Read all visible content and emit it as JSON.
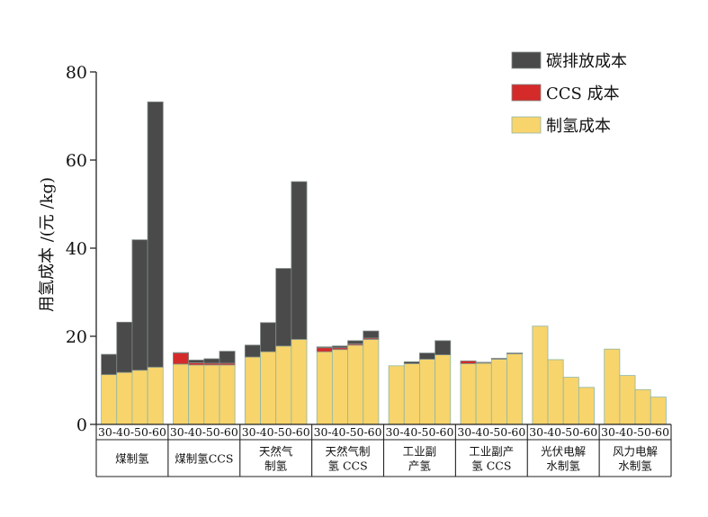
{
  "chart_data": {
    "type": "bar",
    "stacked": true,
    "ylabel": "用氢成本 /(元 /kg)",
    "ylim": [
      0,
      80
    ],
    "yticks": [
      0,
      20,
      40,
      60,
      80
    ],
    "legend_position": "top-right",
    "series": [
      {
        "key": "carbon",
        "name": "碳排放成本",
        "color": "#4a4a4a"
      },
      {
        "key": "ccs",
        "name": "CCS 成本",
        "color": "#d42a2a"
      },
      {
        "key": "h2",
        "name": "制氢成本",
        "color": "#f7d46c"
      }
    ],
    "sub_categories": [
      "30",
      "40",
      "50",
      "60"
    ],
    "groups": [
      {
        "label_lines": [
          "煤制氢"
        ],
        "h2": [
          11.3,
          11.8,
          12.3,
          13.0
        ],
        "ccs": [
          0,
          0,
          0,
          0
        ],
        "carbon": [
          4.6,
          11.4,
          29.6,
          60.2
        ]
      },
      {
        "label_lines": [
          "煤制氢CCS"
        ],
        "h2": [
          13.7,
          13.5,
          13.5,
          13.5
        ],
        "ccs": [
          2.5,
          0.5,
          0.4,
          0.4
        ],
        "carbon": [
          0.1,
          0.6,
          1.0,
          2.7
        ]
      },
      {
        "label_lines": [
          "天然气",
          "制氢"
        ],
        "h2": [
          15.3,
          16.5,
          17.8,
          19.3
        ],
        "ccs": [
          0,
          0,
          0,
          0
        ],
        "carbon": [
          2.7,
          6.6,
          17.6,
          35.8
        ]
      },
      {
        "label_lines": [
          "天然气制",
          "氢 CCS"
        ],
        "h2": [
          16.5,
          17.0,
          18.0,
          19.3
        ],
        "ccs": [
          0.9,
          0.4,
          0.3,
          0.3
        ],
        "carbon": [
          0.2,
          0.4,
          0.7,
          1.6
        ]
      },
      {
        "label_lines": [
          "工业副",
          "产氢"
        ],
        "h2": [
          13.3,
          13.8,
          14.8,
          15.8
        ],
        "ccs": [
          0,
          0,
          0,
          0
        ],
        "carbon": [
          0.0,
          0.4,
          1.4,
          3.2
        ]
      },
      {
        "label_lines": [
          "工业副产",
          "氢 CCS"
        ],
        "h2": [
          13.8,
          13.9,
          14.8,
          16.0
        ],
        "ccs": [
          0.6,
          0.1,
          0.1,
          0.1
        ],
        "carbon": [
          0.0,
          0.1,
          0.1,
          0.1
        ]
      },
      {
        "label_lines": [
          "光伏电解",
          "水制氢"
        ],
        "h2": [
          22.3,
          14.7,
          10.7,
          8.4
        ],
        "ccs": [
          0,
          0,
          0,
          0
        ],
        "carbon": [
          0,
          0,
          0,
          0
        ]
      },
      {
        "label_lines": [
          "风力电解",
          "水制氢"
        ],
        "h2": [
          17.1,
          11.1,
          7.9,
          6.2
        ],
        "ccs": [
          0,
          0,
          0,
          0
        ],
        "carbon": [
          0,
          0,
          0,
          0
        ]
      }
    ]
  }
}
